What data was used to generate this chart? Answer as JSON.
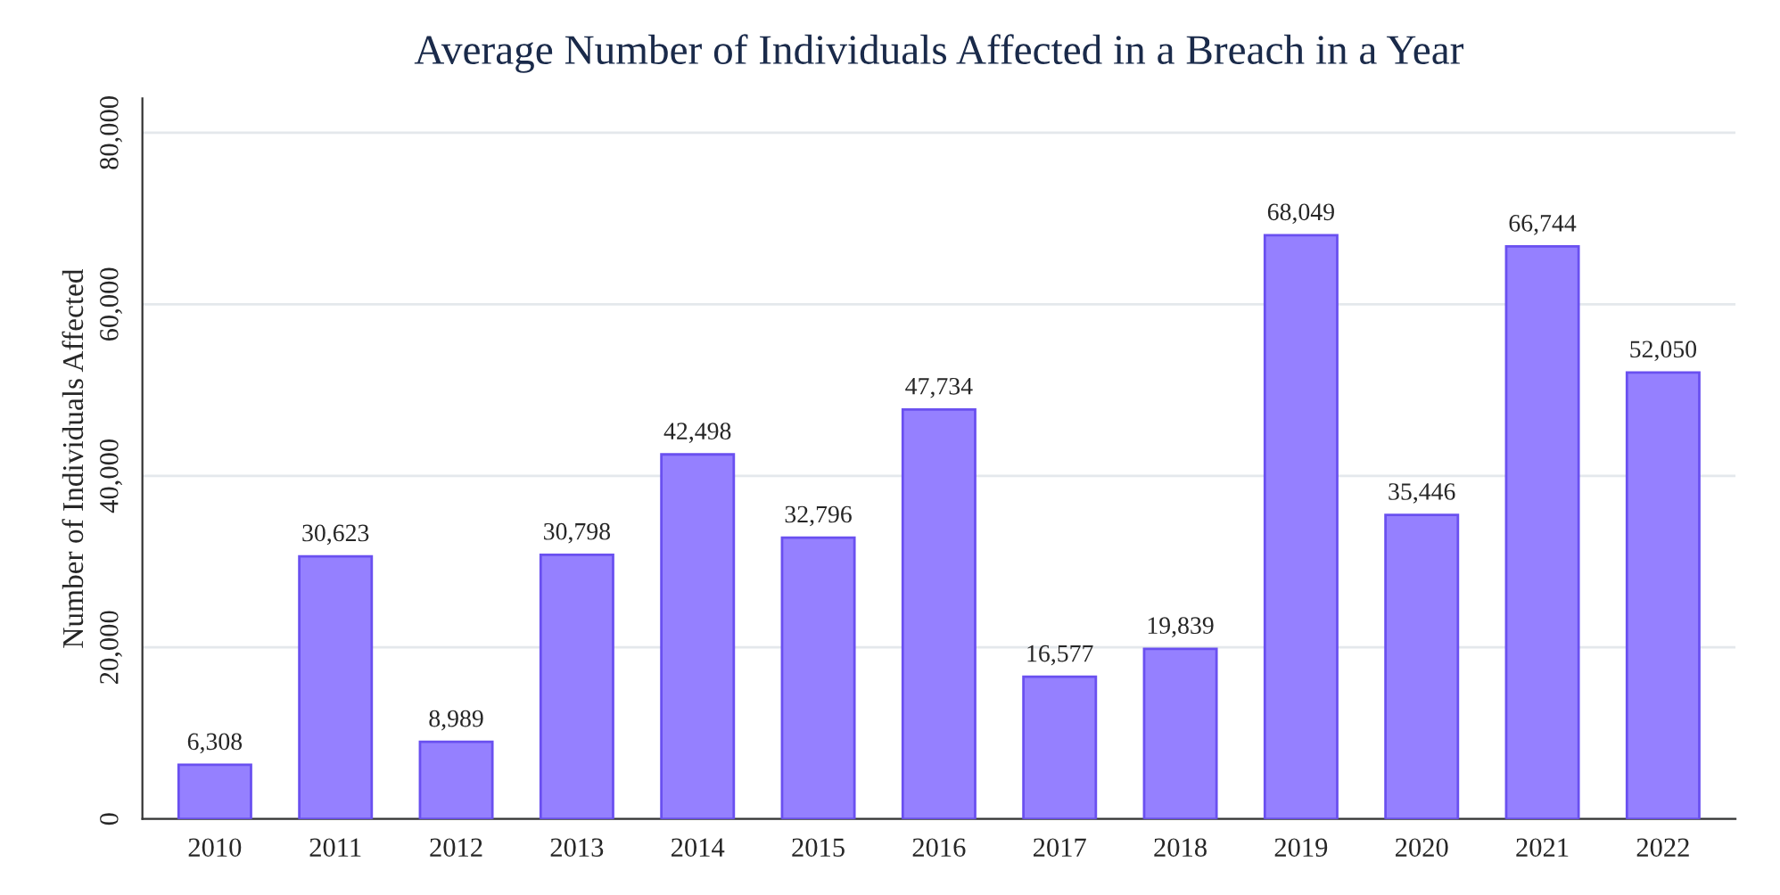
{
  "chart_data": {
    "type": "bar",
    "title": "Average Number of Individuals Affected in a Breach in a Year",
    "ylabel": "Number of Individuals Affected",
    "categories": [
      "2010",
      "2011",
      "2012",
      "2013",
      "2014",
      "2015",
      "2016",
      "2017",
      "2018",
      "2019",
      "2020",
      "2021",
      "2022"
    ],
    "values": [
      6308,
      30623,
      8989,
      30798,
      42498,
      32796,
      47734,
      16577,
      19839,
      68049,
      35446,
      66744,
      52050
    ],
    "value_labels": [
      "6,308",
      "30,623",
      "8,989",
      "30,798",
      "42,498",
      "32,796",
      "47,734",
      "16,577",
      "19,839",
      "68,049",
      "35,446",
      "66,744",
      "52,050"
    ],
    "color": "#9580ff",
    "ylim": [
      0,
      84000
    ],
    "yticks": [
      0,
      {
        "value": 20000,
        "label": "20,000"
      },
      {
        "value": 40000,
        "label": "40,000"
      },
      {
        "value": 60000,
        "label": "60,000"
      },
      {
        "value": 80000,
        "label": "80,000"
      }
    ],
    "grid": "y",
    "legend": false
  }
}
